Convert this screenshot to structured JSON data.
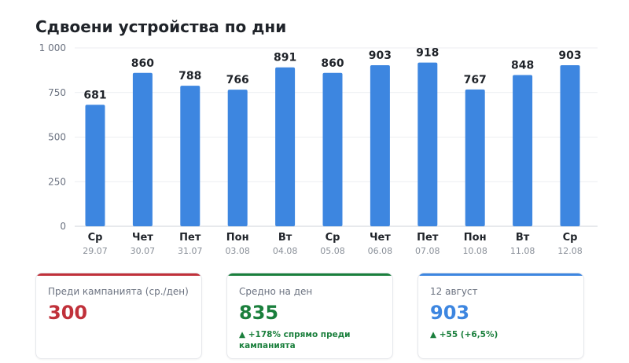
{
  "title": "Сдвоени устройства по дни",
  "chart_data": {
    "type": "bar",
    "categories": [
      "Ср",
      "Чет",
      "Пет",
      "Пон",
      "Вт",
      "Ср",
      "Чет",
      "Пет",
      "Пон",
      "Вт",
      "Ср"
    ],
    "dates": [
      "29.07",
      "30.07",
      "31.07",
      "03.08",
      "04.08",
      "05.08",
      "06.08",
      "07.08",
      "10.08",
      "11.08",
      "12.08"
    ],
    "values": [
      681,
      860,
      788,
      766,
      891,
      860,
      903,
      918,
      767,
      848,
      903
    ],
    "ylim": [
      0,
      1000
    ],
    "yticks": [
      0,
      250,
      500,
      750,
      1000
    ],
    "ytick_labels": [
      "0",
      "250",
      "500",
      "750",
      "1 000"
    ],
    "bar_color": "#3d86e0",
    "grid": true
  },
  "cards": [
    {
      "label": "Преди кампанията (ср./ден)",
      "value": "300",
      "delta": "",
      "color": "#c0313a",
      "delta_color": "#1a7f3c"
    },
    {
      "label": "Средно на ден",
      "value": "835",
      "delta": "▲ +178% спрямо преди кампанията",
      "color": "#1a7f3c",
      "delta_color": "#1a7f3c"
    },
    {
      "label": "12 август",
      "value": "903",
      "delta": "▲ +55 (+6,5%)",
      "color": "#3d86e0",
      "delta_color": "#1a7f3c"
    }
  ]
}
